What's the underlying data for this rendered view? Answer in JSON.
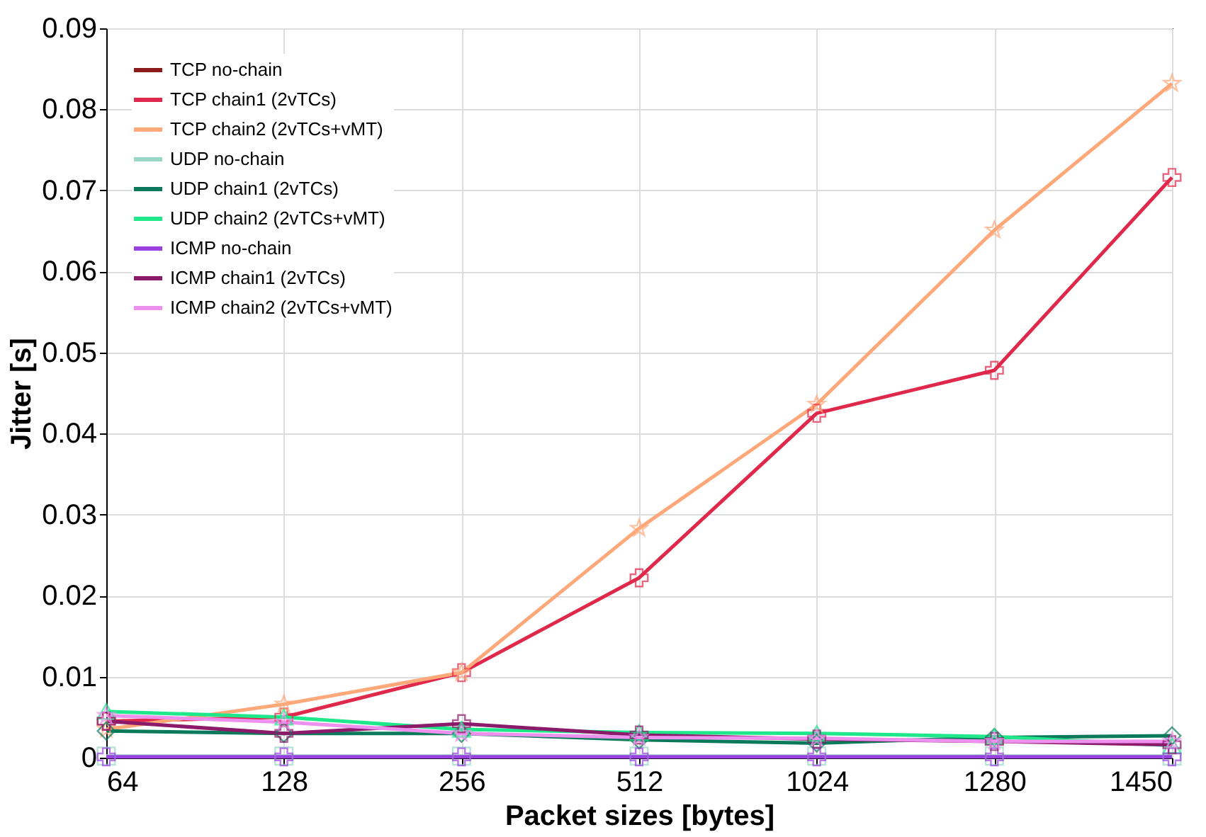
{
  "chart_data": {
    "type": "line",
    "xlabel": "Packet sizes [bytes]",
    "ylabel": "Jitter [s]",
    "categories": [
      "64",
      "128",
      "256",
      "512",
      "1024",
      "1280",
      "1450"
    ],
    "ylim": [
      0,
      0.09
    ],
    "yticks": [
      0,
      0.01,
      0.02,
      0.03,
      0.04,
      0.05,
      0.06,
      0.07,
      0.08,
      0.09
    ],
    "grid": true,
    "legend": "top left",
    "line_style": "solid",
    "series": [
      {
        "name": "TCP no-chain",
        "color": "#8b1a1a",
        "values": [
          null,
          null,
          null,
          null,
          null,
          null,
          null
        ]
      },
      {
        "name": "TCP chain1 (2vTCs)",
        "color": "#e0284a",
        "marker": "cross",
        "values": [
          0.0045,
          0.005,
          0.0105,
          0.0222,
          0.0425,
          0.0478,
          0.0716
        ]
      },
      {
        "name": "TCP chain2 (2vTCs+vMT)",
        "color": "#ffa87a",
        "marker": "star",
        "values": [
          0.0035,
          0.0066,
          0.0105,
          0.0283,
          0.0436,
          0.0651,
          0.0832
        ]
      },
      {
        "name": "UDP no-chain",
        "color": "#99d8c9",
        "marker": "square",
        "values": [
          0.0002,
          0.0002,
          0.0002,
          0.0002,
          0.0002,
          0.0002,
          0.0002
        ]
      },
      {
        "name": "UDP chain1 (2vTCs)",
        "color": "#0a7a5a",
        "marker": "diamond",
        "values": [
          0.0033,
          0.003,
          0.003,
          0.0022,
          0.0018,
          0.0025,
          0.0027
        ]
      },
      {
        "name": "UDP chain2 (2vTCs+vMT)",
        "color": "#1ee88a",
        "marker": "triangle",
        "values": [
          0.0057,
          0.005,
          0.0035,
          0.0031,
          0.003,
          0.0026,
          0.0015
        ]
      },
      {
        "name": "ICMP no-chain",
        "color": "#9b40e0",
        "marker": "cross",
        "values": [
          0.0001,
          0.0001,
          0.0001,
          0.0001,
          0.0001,
          0.0001,
          0.0001
        ]
      },
      {
        "name": "ICMP chain1 (2vTCs)",
        "color": "#8b1a6a",
        "marker": "cross",
        "values": [
          0.0045,
          0.003,
          0.0042,
          0.0028,
          0.0023,
          0.002,
          0.0016
        ]
      },
      {
        "name": "ICMP chain2 (2vTCs+vMT)",
        "color": "#ee90ee",
        "marker": "star",
        "values": [
          0.0052,
          0.0044,
          0.003,
          0.0025,
          0.0024,
          0.002,
          0.002
        ]
      }
    ]
  }
}
